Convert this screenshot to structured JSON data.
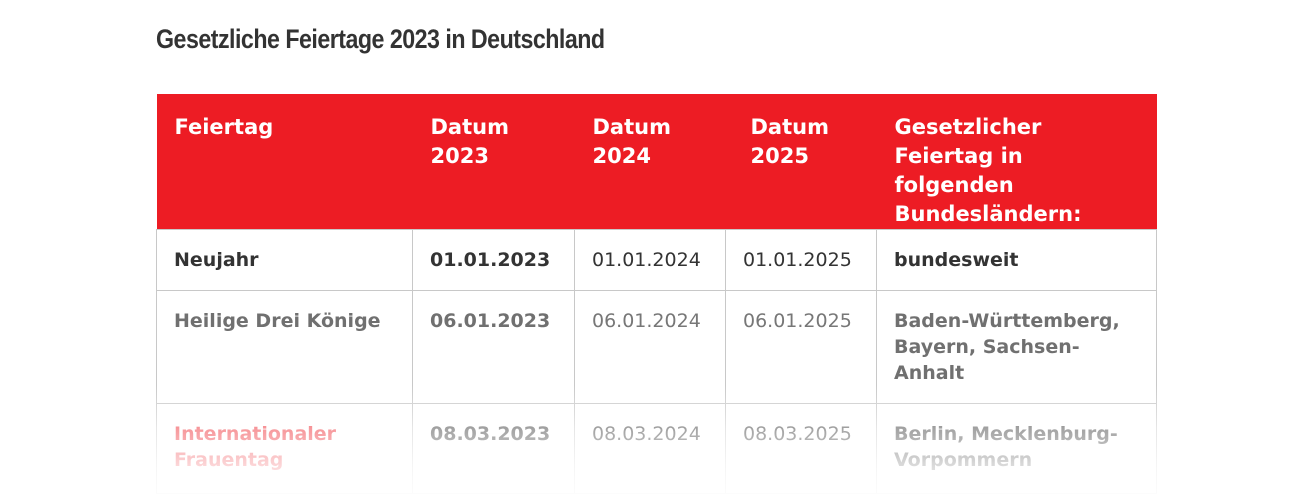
{
  "page_title": "Gesetzliche Feiertage 2023 in Deutschland",
  "table": {
    "headers": {
      "feiertag": "Feiertag",
      "datum_2023": "Datum\n2023",
      "datum_2024": "Datum\n2024",
      "datum_2025": "Datum\n2025",
      "bundeslaender": "Gesetzlicher\nFeiertag in\nfolgenden\nBundesländern:"
    },
    "rows": [
      {
        "name": "Neujahr",
        "d2023": "01.01.2023",
        "d2024": "01.01.2024",
        "d2025": "01.01.2025",
        "states": "bundesweit"
      },
      {
        "name": "Heilige Drei Könige",
        "d2023": "06.01.2023",
        "d2024": "06.01.2024",
        "d2025": "06.01.2025",
        "states": "Baden-Württemberg,\nBayern, Sachsen-\nAnhalt"
      },
      {
        "name": "Internationaler\nFrauentag",
        "d2023": "08.03.2023",
        "d2024": "08.03.2024",
        "d2025": "08.03.2025",
        "states": "Berlin, Mecklenburg-\nVorpommern"
      }
    ]
  },
  "colors": {
    "header_bg": "#ed1c24",
    "header_text": "#ffffff",
    "body_text": "#333333",
    "highlight_name": "#ed1c24",
    "border": "#c8c8c8"
  }
}
